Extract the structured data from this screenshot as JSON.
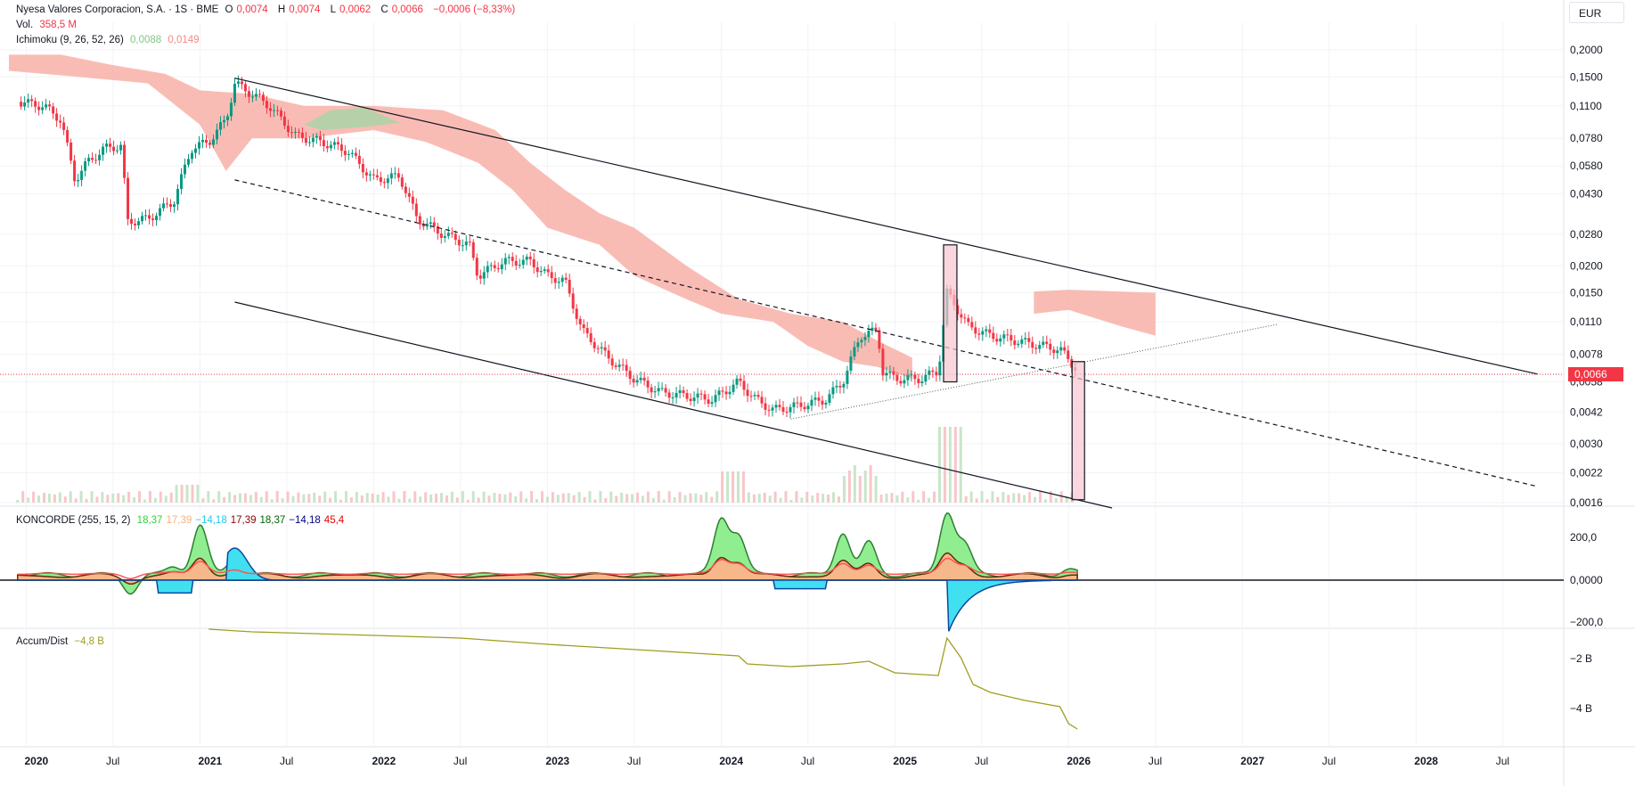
{
  "header": {
    "symbol": "Nyesa Valores Corporacion, S.A. · 1S · BME",
    "o_key": "O",
    "o_val": "0,0074",
    "h_key": "H",
    "h_val": "0,0074",
    "l_key": "L",
    "l_val": "0,0062",
    "c_key": "C",
    "c_val": "0,0066",
    "change": "−0,0006 (−8,33%)",
    "vol_key": "Vol.",
    "vol_val": "358,5 M",
    "ichimoku_name": "Ichimoku (9, 26, 52, 26)",
    "ichimoku_v1": "0,0088",
    "ichimoku_v2": "0,0149",
    "currency": "EUR",
    "last_price": "0,0066"
  },
  "koncorde_legend": {
    "name": "KONCORDE (255, 15, 2)",
    "values": [
      {
        "text": "18,37",
        "color": "#34d13d"
      },
      {
        "text": "17,39",
        "color": "#f5b27a"
      },
      {
        "text": "−14,18",
        "color": "#22c7e8"
      },
      {
        "text": "17,39",
        "color": "#8b0000"
      },
      {
        "text": "18,37",
        "color": "#006400"
      },
      {
        "text": "−14,18",
        "color": "#000080"
      },
      {
        "text": "45,4",
        "color": "#e00000"
      }
    ]
  },
  "accum_legend": {
    "name": "Accum/Dist",
    "value": "−4,8 B"
  },
  "chart_data": [
    {
      "type": "line",
      "title": "Nyesa Valores Corporacion, S.A. · 1S · BME",
      "scale": "log",
      "y_ticks": [
        "0,2000",
        "0,1500",
        "0,1100",
        "0,0780",
        "0,0580",
        "0,0430",
        "0,0280",
        "0,0200",
        "0,0150",
        "0,0110",
        "0,0078",
        "0,0058",
        "0,0042",
        "0,0030",
        "0,0022",
        "0,0016"
      ],
      "x_ticks": [
        "2020",
        "Jul",
        "2021",
        "Jul",
        "2022",
        "Jul",
        "2023",
        "Jul",
        "2024",
        "Jul",
        "2025",
        "Jul",
        "2026",
        "Jul",
        "2027",
        "Jul",
        "2028",
        "Jul"
      ],
      "ohlc_last": {
        "open": 0.0074,
        "high": 0.0074,
        "low": 0.0062,
        "close": 0.0066
      },
      "price_path": [
        [
          2019.95,
          0.115
        ],
        [
          2020.1,
          0.11
        ],
        [
          2020.2,
          0.095
        ],
        [
          2020.28,
          0.05
        ],
        [
          2020.35,
          0.06
        ],
        [
          2020.45,
          0.07
        ],
        [
          2020.55,
          0.072
        ],
        [
          2020.58,
          0.032
        ],
        [
          2020.7,
          0.033
        ],
        [
          2020.85,
          0.04
        ],
        [
          2020.95,
          0.07
        ],
        [
          2021.05,
          0.075
        ],
        [
          2021.15,
          0.095
        ],
        [
          2021.2,
          0.14
        ],
        [
          2021.3,
          0.125
        ],
        [
          2021.4,
          0.11
        ],
        [
          2021.55,
          0.08
        ],
        [
          2021.7,
          0.075
        ],
        [
          2021.85,
          0.068
        ],
        [
          2022.0,
          0.05
        ],
        [
          2022.15,
          0.052
        ],
        [
          2022.25,
          0.033
        ],
        [
          2022.4,
          0.028
        ],
        [
          2022.55,
          0.025
        ],
        [
          2022.6,
          0.018
        ],
        [
          2022.75,
          0.021
        ],
        [
          2022.9,
          0.021
        ],
        [
          2023.0,
          0.018
        ],
        [
          2023.1,
          0.017
        ],
        [
          2023.2,
          0.01
        ],
        [
          2023.35,
          0.0075
        ],
        [
          2023.5,
          0.006
        ],
        [
          2023.65,
          0.0052
        ],
        [
          2023.8,
          0.005
        ],
        [
          2023.95,
          0.0048
        ],
        [
          2024.1,
          0.0058
        ],
        [
          2024.2,
          0.0048
        ],
        [
          2024.3,
          0.0043
        ],
        [
          2024.45,
          0.0045
        ],
        [
          2024.6,
          0.0048
        ],
        [
          2024.7,
          0.0058
        ],
        [
          2024.8,
          0.0095
        ],
        [
          2024.9,
          0.01
        ],
        [
          2024.93,
          0.0065
        ],
        [
          2025.0,
          0.006
        ],
        [
          2025.15,
          0.006
        ],
        [
          2025.25,
          0.0065
        ],
        [
          2025.3,
          0.015
        ],
        [
          2025.35,
          0.013
        ],
        [
          2025.42,
          0.0105
        ],
        [
          2025.55,
          0.0095
        ],
        [
          2025.7,
          0.009
        ],
        [
          2025.85,
          0.0085
        ],
        [
          2025.95,
          0.0082
        ],
        [
          2026.05,
          0.0066
        ]
      ],
      "volume_label": "358,5 M"
    },
    {
      "type": "area",
      "title": "KONCORDE (255, 15, 2)",
      "y_ticks": [
        "200,0",
        "0,0000",
        "−200,0"
      ],
      "series": [
        {
          "name": "green",
          "values_last": 18.37
        },
        {
          "name": "brown",
          "values_last": 17.39
        },
        {
          "name": "blue",
          "values_last": -14.18
        },
        {
          "name": "avg",
          "values_last": 45.4
        }
      ]
    },
    {
      "type": "line",
      "title": "Accum/Dist",
      "y_ticks": [
        "−2 B",
        "−4 B"
      ],
      "last_value": "−4,8 B"
    }
  ],
  "colors": {
    "up": "#089981",
    "down": "#f23645",
    "cloud_bear": "#f7a59c",
    "cloud_bull": "#a5d6a7",
    "accum": "#9e9e1e"
  }
}
